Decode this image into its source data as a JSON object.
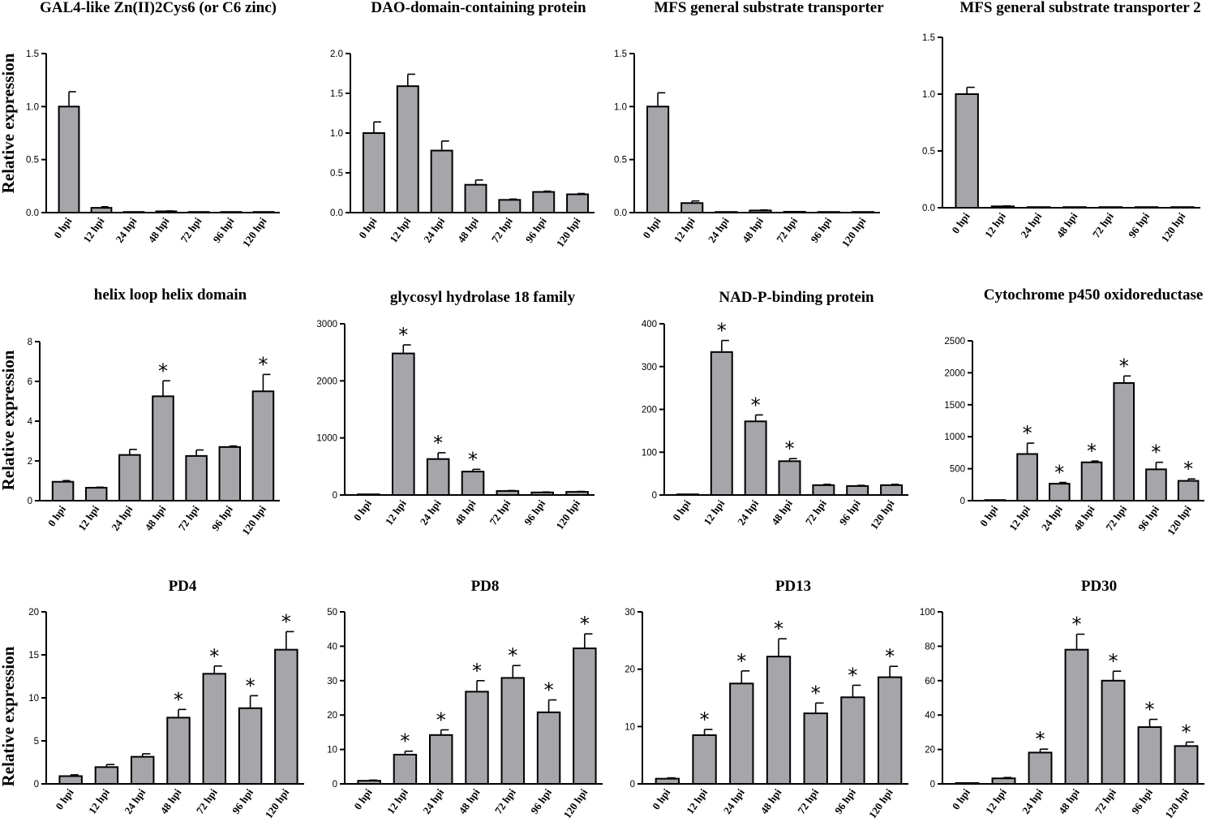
{
  "figure": {
    "ylabel": "Relative expression"
  },
  "chart_data": [
    {
      "type": "bar",
      "title": "GAL4-like Zn(II)2Cys6 (or C6 zinc)",
      "ylabel": "Relative expression",
      "categories": [
        "0 hpi",
        "12 hpi",
        "24 hpi",
        "48 hpi",
        "72 hpi",
        "96 hpi",
        "120 hpi"
      ],
      "values": [
        1.0,
        0.045,
        0.0,
        0.012,
        0.003,
        0.006,
        0.003
      ],
      "errors": [
        0.14,
        0.01,
        0.0,
        0.004,
        0.001,
        0.002,
        0.001
      ],
      "significant": [
        false,
        false,
        false,
        false,
        false,
        false,
        false
      ],
      "ylim": [
        0,
        1.5
      ],
      "yticks": [
        "0.0",
        "0.5",
        "1.0",
        "1.5"
      ]
    },
    {
      "type": "bar",
      "title": "DAO-domain-containing protein",
      "categories": [
        "0 hpi",
        "12 hpi",
        "24 hpi",
        "48 hpi",
        "72 hpi",
        "96 hpi",
        "120 hpi"
      ],
      "values": [
        1.0,
        1.59,
        0.78,
        0.35,
        0.16,
        0.26,
        0.23
      ],
      "errors": [
        0.14,
        0.15,
        0.12,
        0.06,
        0.01,
        0.01,
        0.01
      ],
      "significant": [
        false,
        false,
        false,
        false,
        false,
        false,
        false
      ],
      "ylim": [
        0,
        2.0
      ],
      "yticks": [
        "0.0",
        "0.5",
        "1.0",
        "1.5",
        "2.0"
      ]
    },
    {
      "type": "bar",
      "title": "MFS general substrate transporter",
      "categories": [
        "0 hpi",
        "12 hpi",
        "24 hpi",
        "48 hpi",
        "72 hpi",
        "96 hpi",
        "120 hpi"
      ],
      "values": [
        1.0,
        0.09,
        0.0,
        0.02,
        0.008,
        0.003,
        0.002
      ],
      "errors": [
        0.13,
        0.02,
        0.0,
        0.005,
        0.002,
        0.001,
        0.001
      ],
      "significant": [
        false,
        false,
        false,
        false,
        false,
        false,
        false
      ],
      "ylim": [
        0,
        1.5
      ],
      "yticks": [
        "0.0",
        "0.5",
        "1.0",
        "1.5"
      ]
    },
    {
      "type": "bar",
      "title": "MFS general substrate transporter 2",
      "categories": [
        "0 hpi",
        "12 hpi",
        "24 hpi",
        "48 hpi",
        "72 hpi",
        "96 hpi",
        "120 hpi"
      ],
      "values": [
        1.0,
        0.012,
        0.003,
        0.002,
        0.002,
        0.002,
        0.002
      ],
      "errors": [
        0.06,
        0.004,
        0.001,
        0.001,
        0.001,
        0.001,
        0.001
      ],
      "significant": [
        false,
        false,
        false,
        false,
        false,
        false,
        false
      ],
      "ylim": [
        0,
        1.5
      ],
      "yticks": [
        "0.0",
        "0.5",
        "1.0",
        "1.5"
      ]
    },
    {
      "type": "bar",
      "title": "helix loop helix domain",
      "ylabel": "Relative expression",
      "categories": [
        "0 hpi",
        "12 hpi",
        "24 hpi",
        "48 hpi",
        "72 hpi",
        "96 hpi",
        "120 hpi"
      ],
      "values": [
        0.95,
        0.65,
        2.3,
        5.25,
        2.25,
        2.7,
        5.5
      ],
      "errors": [
        0.06,
        0.03,
        0.28,
        0.78,
        0.3,
        0.05,
        0.85
      ],
      "significant": [
        false,
        false,
        false,
        true,
        false,
        false,
        true
      ],
      "ylim": [
        0,
        8
      ],
      "yticks": [
        "0",
        "2",
        "4",
        "6",
        "8"
      ]
    },
    {
      "type": "bar",
      "title": "glycosyl hydrolase 18 family",
      "categories": [
        "0 hpi",
        "12 hpi",
        "24 hpi",
        "48 hpi",
        "72 hpi",
        "96 hpi",
        "120 hpi"
      ],
      "values": [
        1,
        2480,
        630,
        410,
        70,
        45,
        55
      ],
      "errors": [
        0,
        150,
        110,
        40,
        8,
        8,
        8
      ],
      "significant": [
        false,
        true,
        true,
        true,
        false,
        false,
        false
      ],
      "ylim": [
        0,
        3000
      ],
      "yticks": [
        "0",
        "1000",
        "2000",
        "3000"
      ]
    },
    {
      "type": "bar",
      "title": "NAD-P-binding protein",
      "categories": [
        "0 hpi",
        "12 hpi",
        "24 hpi",
        "48 hpi",
        "72 hpi",
        "96 hpi",
        "120 hpi"
      ],
      "values": [
        1,
        334,
        172,
        79,
        23,
        21,
        23
      ],
      "errors": [
        0,
        27,
        15,
        6,
        2,
        1.5,
        2
      ],
      "significant": [
        false,
        true,
        true,
        true,
        false,
        false,
        false
      ],
      "ylim": [
        0,
        400
      ],
      "yticks": [
        "0",
        "100",
        "200",
        "300",
        "400"
      ]
    },
    {
      "type": "bar",
      "title": "Cytochrome p450 oxidoreductase",
      "categories": [
        "0 hpi",
        "12 hpi",
        "24 hpi",
        "48 hpi",
        "72 hpi",
        "96 hpi",
        "120 hpi"
      ],
      "values": [
        1,
        730,
        265,
        600,
        1840,
        490,
        310
      ],
      "errors": [
        0,
        170,
        20,
        20,
        110,
        110,
        30
      ],
      "significant": [
        false,
        true,
        true,
        true,
        true,
        true,
        true
      ],
      "ylim": [
        0,
        2500
      ],
      "yticks": [
        "0",
        "500",
        "1000",
        "1500",
        "2000",
        "2500"
      ]
    },
    {
      "type": "bar",
      "title": "PD4",
      "ylabel": "Relative expression",
      "categories": [
        "0 hpi",
        "12 hpi",
        "24 hpi",
        "48 hpi",
        "72 hpi",
        "96 hpi",
        "120 hpi"
      ],
      "values": [
        0.9,
        1.95,
        3.15,
        7.7,
        12.8,
        8.8,
        15.6
      ],
      "errors": [
        0.15,
        0.3,
        0.35,
        0.95,
        0.9,
        1.45,
        2.1
      ],
      "significant": [
        false,
        false,
        false,
        true,
        true,
        true,
        true
      ],
      "ylim": [
        0,
        20
      ],
      "yticks": [
        "0",
        "5",
        "10",
        "15",
        "20"
      ]
    },
    {
      "type": "bar",
      "title": "PD8",
      "categories": [
        "0 hpi",
        "12 hpi",
        "24 hpi",
        "48 hpi",
        "72 hpi",
        "96 hpi",
        "120 hpi"
      ],
      "values": [
        0.9,
        8.5,
        14.2,
        26.8,
        30.8,
        20.8,
        39.4
      ],
      "errors": [
        0.2,
        1.0,
        1.5,
        3.2,
        3.6,
        3.6,
        4.2
      ],
      "significant": [
        false,
        true,
        true,
        true,
        true,
        true,
        true
      ],
      "ylim": [
        0,
        50
      ],
      "yticks": [
        "0",
        "10",
        "20",
        "30",
        "40",
        "50"
      ]
    },
    {
      "type": "bar",
      "title": "PD13",
      "categories": [
        "0 hpi",
        "12 hpi",
        "24 hpi",
        "48 hpi",
        "72 hpi",
        "96 hpi",
        "120 hpi"
      ],
      "values": [
        0.9,
        8.5,
        17.5,
        22.2,
        12.3,
        15.1,
        18.6
      ],
      "errors": [
        0.15,
        1.0,
        2.2,
        3.1,
        1.8,
        2.1,
        1.9
      ],
      "significant": [
        false,
        true,
        true,
        true,
        true,
        true,
        true
      ],
      "ylim": [
        0,
        30
      ],
      "yticks": [
        "0",
        "10",
        "20",
        "30"
      ]
    },
    {
      "type": "bar",
      "title": "PD30",
      "categories": [
        "0 hpi",
        "12 hpi",
        "24 hpi",
        "48 hpi",
        "72 hpi",
        "96 hpi",
        "120 hpi"
      ],
      "values": [
        0.5,
        3.2,
        18.2,
        78,
        60,
        33,
        22
      ],
      "errors": [
        0.1,
        0.5,
        2.0,
        9,
        5.5,
        4.5,
        2.3
      ],
      "significant": [
        false,
        false,
        true,
        true,
        true,
        true,
        true
      ],
      "ylim": [
        0,
        100
      ],
      "yticks": [
        "0",
        "20",
        "40",
        "60",
        "80",
        "100"
      ]
    }
  ]
}
